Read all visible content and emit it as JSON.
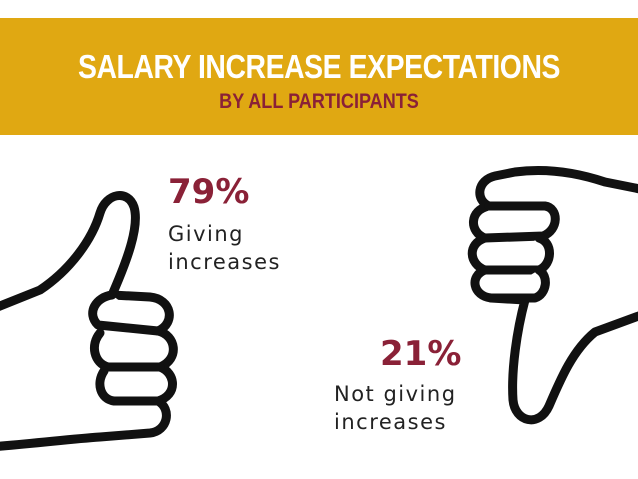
{
  "header": {
    "title": "SALARY INCREASE EXPECTATIONS",
    "subtitle": "BY ALL PARTICIPANTS"
  },
  "stats": [
    {
      "percent": "79%",
      "label_line1": "Giving",
      "label_line2": "increases",
      "icon": "thumbs-up-icon"
    },
    {
      "percent": "21%",
      "label_line1": "Not giving",
      "label_line2": "increases",
      "icon": "thumbs-down-icon"
    }
  ],
  "colors": {
    "banner": "#e0a812",
    "accent": "#8a2137",
    "text": "#222222"
  }
}
